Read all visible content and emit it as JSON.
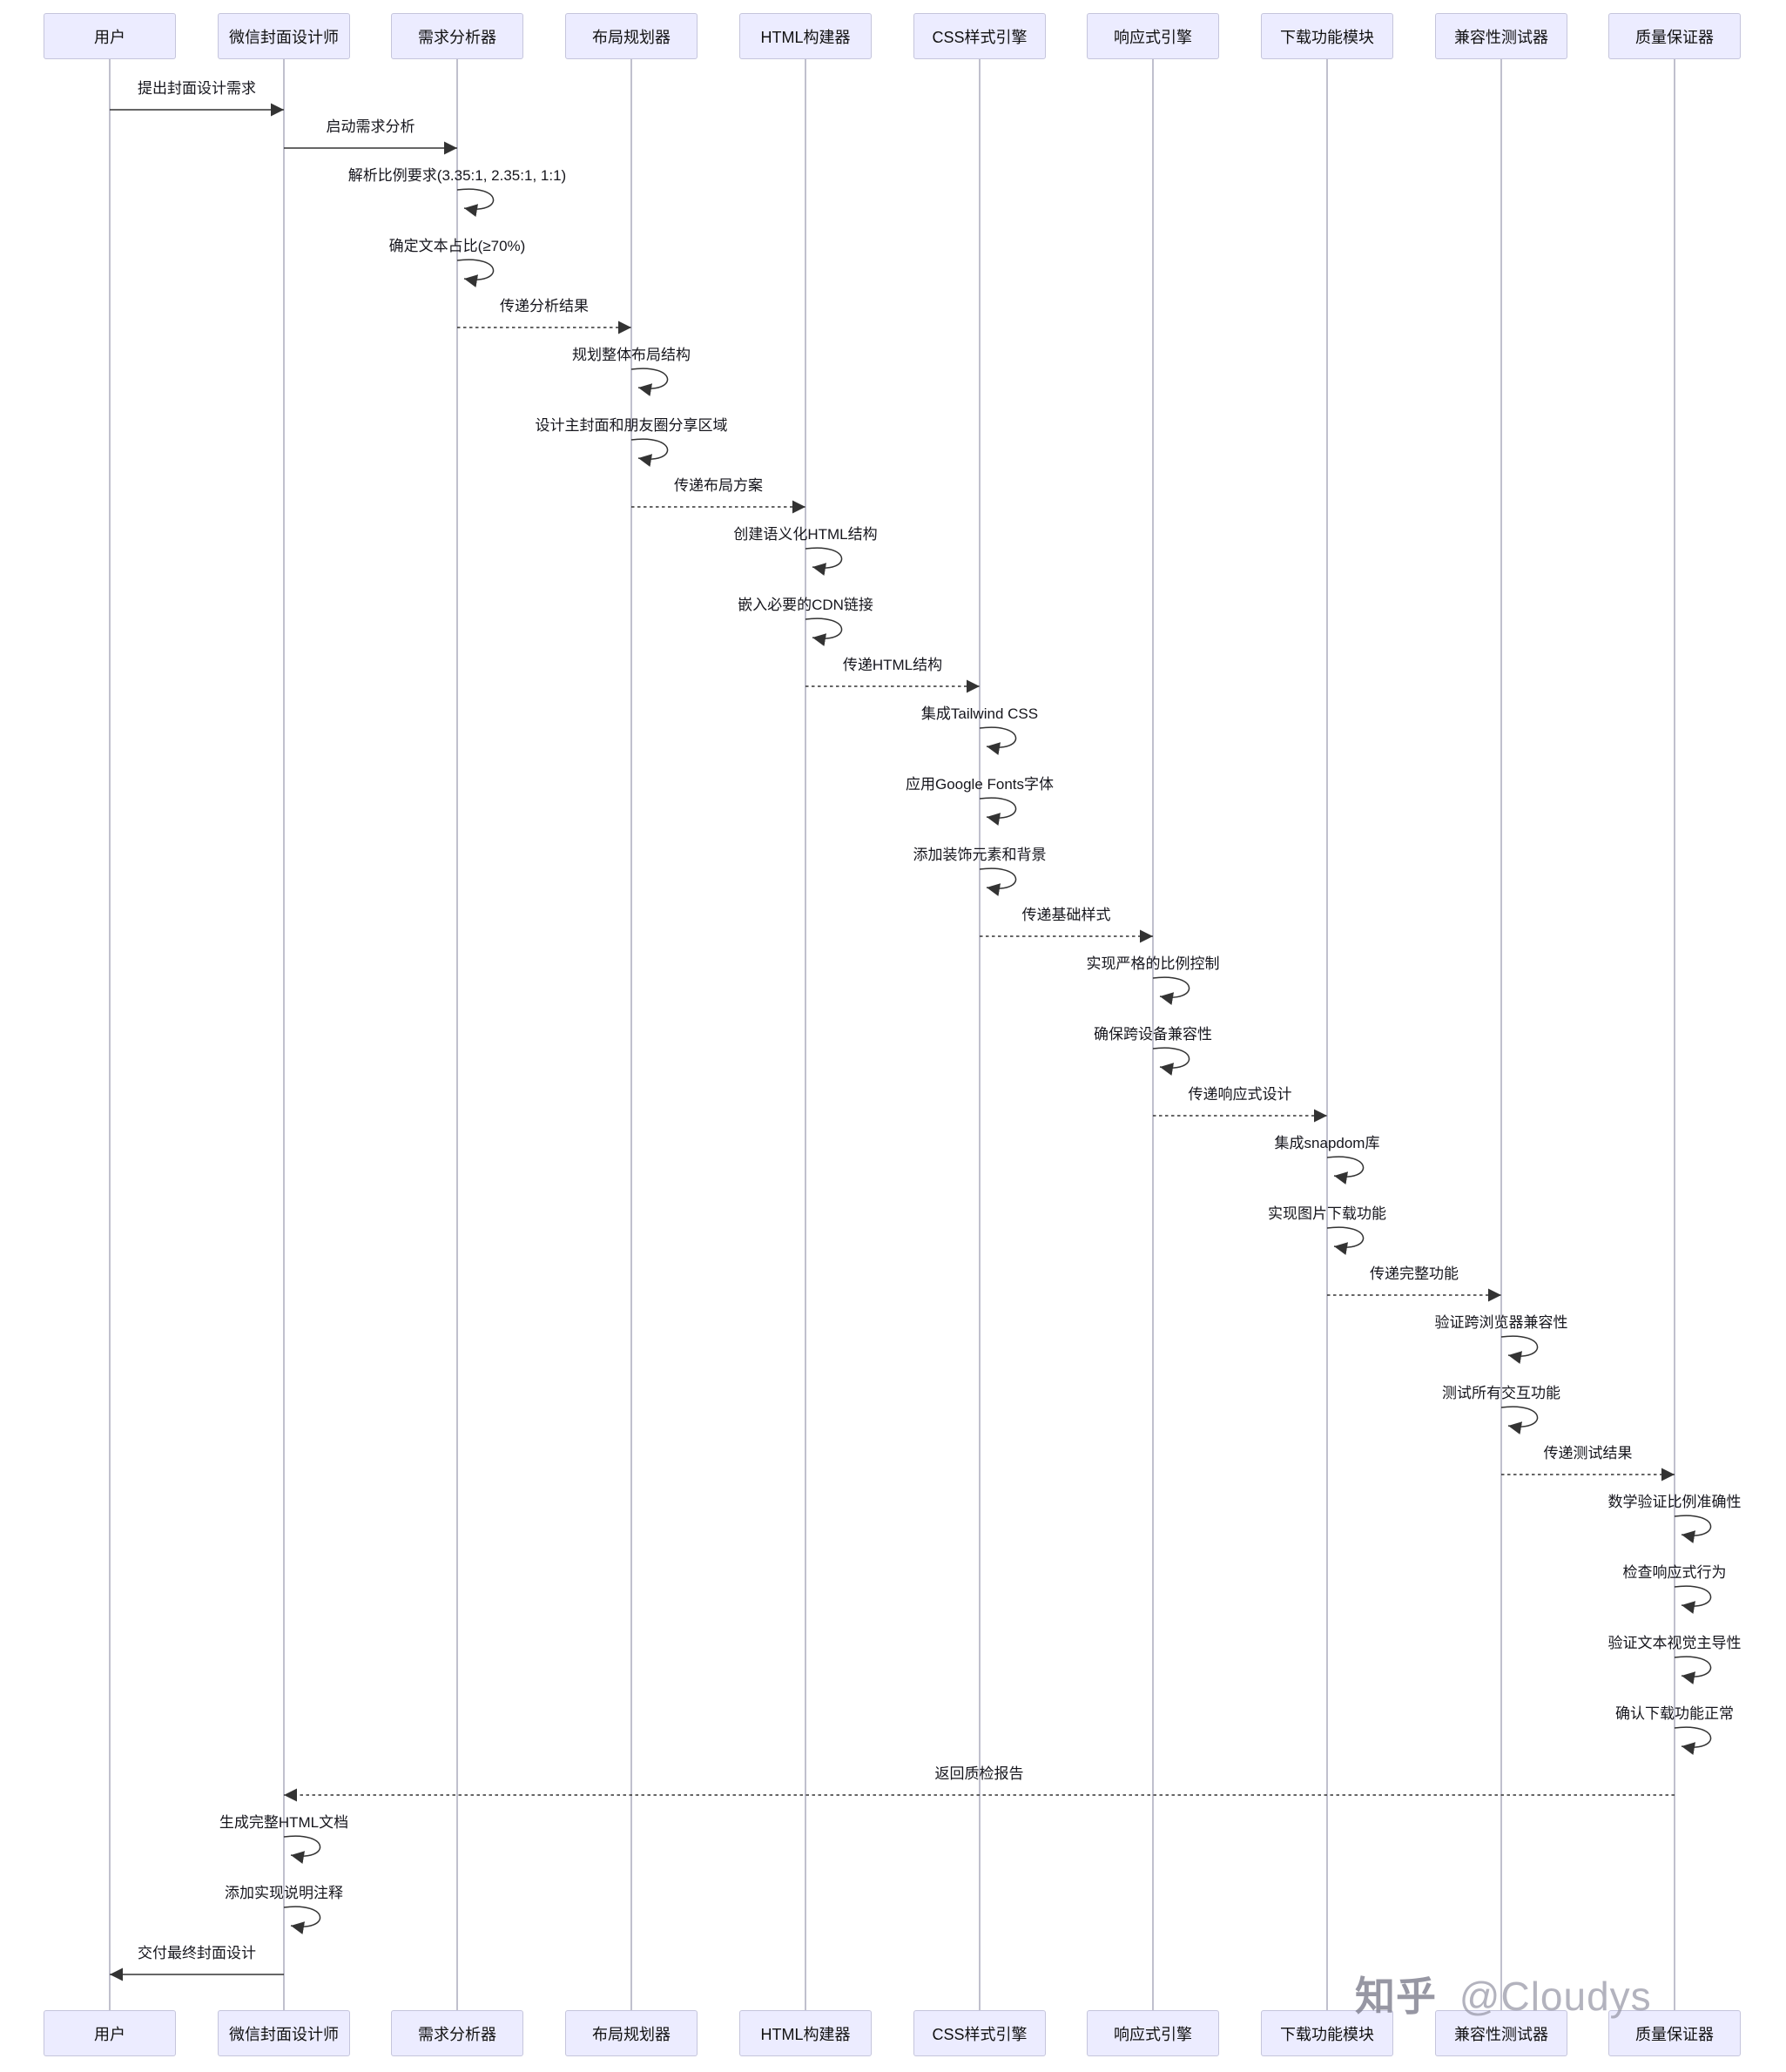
{
  "diagram": {
    "type": "sequence",
    "participants": [
      {
        "name": "用户"
      },
      {
        "name": "微信封面设计师"
      },
      {
        "name": "需求分析器"
      },
      {
        "name": "布局规划器"
      },
      {
        "name": "HTML构建器"
      },
      {
        "name": "CSS样式引擎"
      },
      {
        "name": "响应式引擎"
      },
      {
        "name": "下载功能模块"
      },
      {
        "name": "兼容性测试器"
      },
      {
        "name": "质量保证器"
      }
    ],
    "messages": [
      {
        "type": "message",
        "from": 0,
        "to": 1,
        "line": "solid",
        "label": "提出封面设计需求"
      },
      {
        "type": "message",
        "from": 1,
        "to": 2,
        "line": "solid",
        "label": "启动需求分析"
      },
      {
        "type": "self",
        "actor": 2,
        "label": "解析比例要求(3.35:1, 2.35:1, 1:1)"
      },
      {
        "type": "self",
        "actor": 2,
        "label": "确定文本占比(≥70%)"
      },
      {
        "type": "message",
        "from": 2,
        "to": 3,
        "line": "dotted",
        "label": "传递分析结果"
      },
      {
        "type": "self",
        "actor": 3,
        "label": "规划整体布局结构"
      },
      {
        "type": "self",
        "actor": 3,
        "label": "设计主封面和朋友圈分享区域"
      },
      {
        "type": "message",
        "from": 3,
        "to": 4,
        "line": "dotted",
        "label": "传递布局方案"
      },
      {
        "type": "self",
        "actor": 4,
        "label": "创建语义化HTML结构"
      },
      {
        "type": "self",
        "actor": 4,
        "label": "嵌入必要的CDN链接"
      },
      {
        "type": "message",
        "from": 4,
        "to": 5,
        "line": "dotted",
        "label": "传递HTML结构"
      },
      {
        "type": "self",
        "actor": 5,
        "label": "集成Tailwind CSS"
      },
      {
        "type": "self",
        "actor": 5,
        "label": "应用Google Fonts字体"
      },
      {
        "type": "self",
        "actor": 5,
        "label": "添加装饰元素和背景"
      },
      {
        "type": "message",
        "from": 5,
        "to": 6,
        "line": "dotted",
        "label": "传递基础样式"
      },
      {
        "type": "self",
        "actor": 6,
        "label": "实现严格的比例控制"
      },
      {
        "type": "self",
        "actor": 6,
        "label": "确保跨设备兼容性"
      },
      {
        "type": "message",
        "from": 6,
        "to": 7,
        "line": "dotted",
        "label": "传递响应式设计"
      },
      {
        "type": "self",
        "actor": 7,
        "label": "集成snapdom库"
      },
      {
        "type": "self",
        "actor": 7,
        "label": "实现图片下载功能"
      },
      {
        "type": "message",
        "from": 7,
        "to": 8,
        "line": "dotted",
        "label": "传递完整功能"
      },
      {
        "type": "self",
        "actor": 8,
        "label": "验证跨浏览器兼容性"
      },
      {
        "type": "self",
        "actor": 8,
        "label": "测试所有交互功能"
      },
      {
        "type": "message",
        "from": 8,
        "to": 9,
        "line": "dotted",
        "label": "传递测试结果"
      },
      {
        "type": "self",
        "actor": 9,
        "label": "数学验证比例准确性"
      },
      {
        "type": "self",
        "actor": 9,
        "label": "检查响应式行为"
      },
      {
        "type": "self",
        "actor": 9,
        "label": "验证文本视觉主导性"
      },
      {
        "type": "self",
        "actor": 9,
        "label": "确认下载功能正常"
      },
      {
        "type": "message",
        "from": 9,
        "to": 1,
        "line": "dotted",
        "label": "返回质检报告"
      },
      {
        "type": "self",
        "actor": 1,
        "label": "生成完整HTML文档"
      },
      {
        "type": "self",
        "actor": 1,
        "label": "添加实现说明注释"
      },
      {
        "type": "message",
        "from": 1,
        "to": 0,
        "line": "solid",
        "label": "交付最终封面设计"
      }
    ],
    "colors": {
      "participant_fill": "#ECECFF",
      "participant_border": "#c5c5dc",
      "arrow": "#333333",
      "lifeline": "#a5a5b8"
    }
  },
  "watermark": {
    "brand": "知乎",
    "handle": "@Cloudys"
  }
}
